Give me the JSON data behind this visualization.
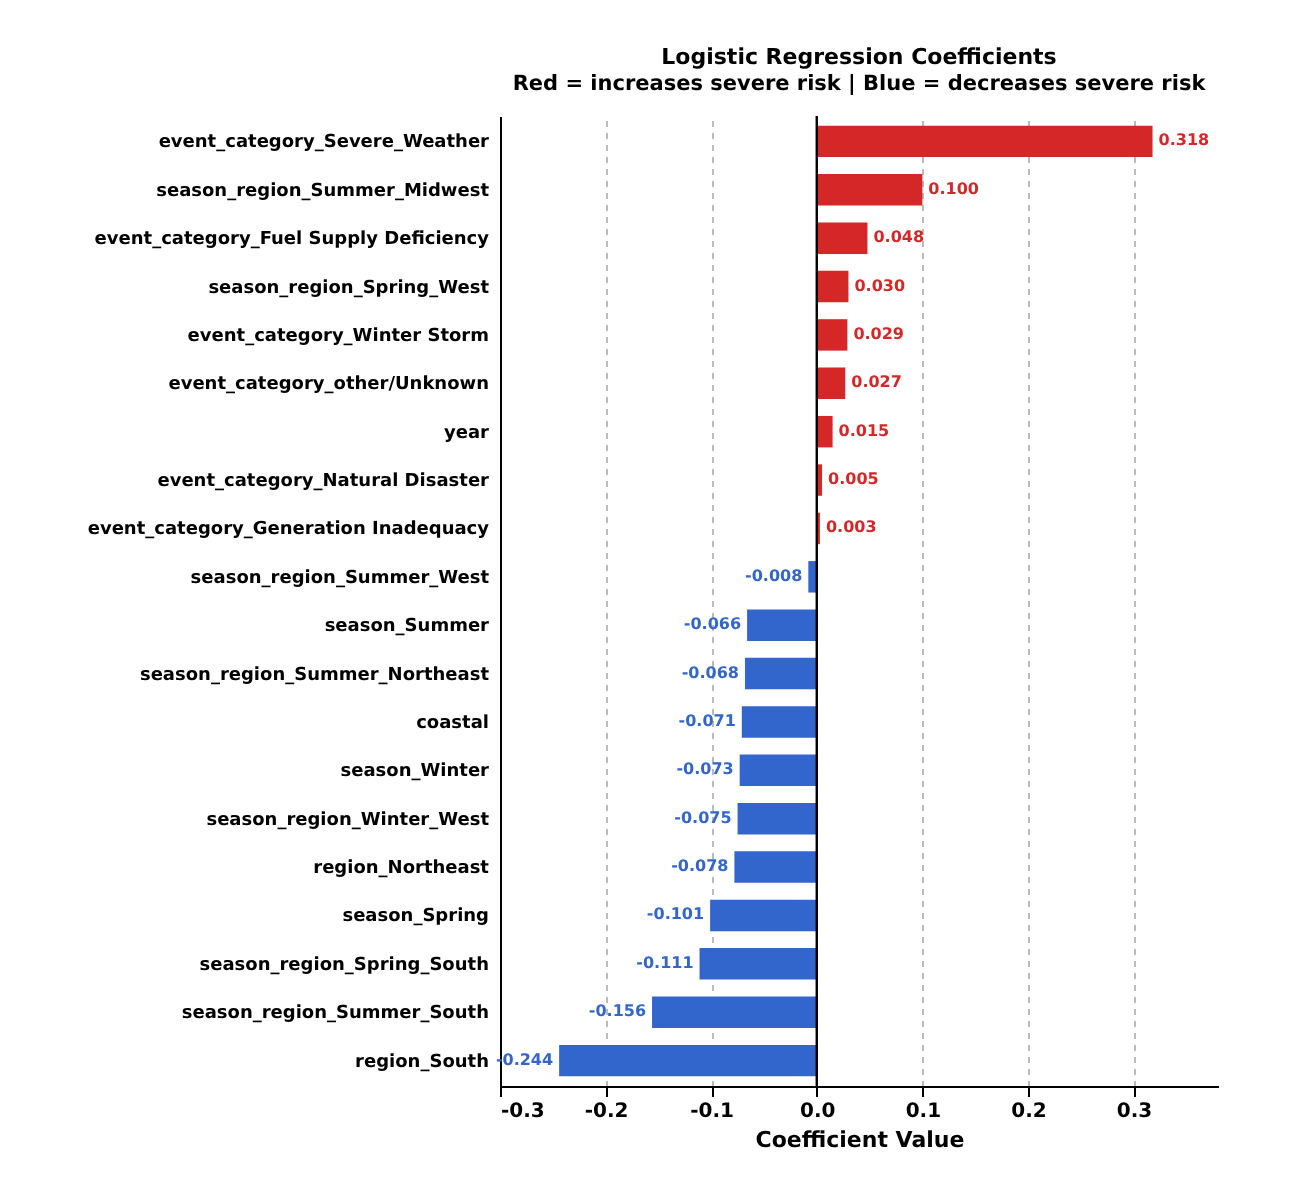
{
  "chart_data": {
    "type": "bar",
    "orientation": "horizontal",
    "title": "Logistic Regression Coefficients",
    "subtitle": "Red = increases severe risk  |  Blue = decreases severe risk",
    "xlabel": "Coefficient Value",
    "categories": [
      "event_category_Severe_Weather",
      "season_region_Summer_Midwest",
      "event_category_Fuel Supply Deficiency",
      "season_region_Spring_West",
      "event_category_Winter Storm",
      "event_category_other/Unknown",
      "year",
      "event_category_Natural Disaster",
      "event_category_Generation Inadequacy",
      "season_region_Summer_West",
      "season_Summer",
      "season_region_Summer_Northeast",
      "coastal",
      "season_Winter",
      "season_region_Winter_West",
      "region_Northeast",
      "season_Spring",
      "season_region_Spring_South",
      "season_region_Summer_South",
      "region_South"
    ],
    "values": [
      0.318,
      0.1,
      0.048,
      0.03,
      0.029,
      0.027,
      0.015,
      0.005,
      0.003,
      -0.008,
      -0.066,
      -0.068,
      -0.071,
      -0.073,
      -0.075,
      -0.078,
      -0.101,
      -0.111,
      -0.156,
      -0.244
    ],
    "value_labels": [
      "0.318",
      "0.100",
      "0.048",
      "0.030",
      "0.029",
      "0.027",
      "0.015",
      "0.005",
      "0.003",
      "-0.008",
      "-0.066",
      "-0.068",
      "-0.071",
      "-0.073",
      "-0.075",
      "-0.078",
      "-0.101",
      "-0.111",
      "-0.156",
      "-0.244"
    ],
    "colors": [
      "#d62728",
      "#d62728",
      "#d62728",
      "#d62728",
      "#d62728",
      "#d62728",
      "#d62728",
      "#d62728",
      "#d62728",
      "#3366cc",
      "#3366cc",
      "#3366cc",
      "#3366cc",
      "#3366cc",
      "#3366cc",
      "#3366cc",
      "#3366cc",
      "#3366cc",
      "#3366cc",
      "#3366cc"
    ],
    "xlim": [
      -0.3,
      0.38
    ],
    "xticks": [
      {
        "value": -0.3,
        "label": "-0.3"
      },
      {
        "value": -0.2,
        "label": "-0.2"
      },
      {
        "value": -0.1,
        "label": "-0.1"
      },
      {
        "value": 0,
        "label": "0.0"
      },
      {
        "value": 0.1,
        "label": "0.1"
      },
      {
        "value": 0.2,
        "label": "0.2"
      },
      {
        "value": 0.3,
        "label": "0.3"
      }
    ],
    "ref_lines": [
      {
        "axis": "x",
        "value": 0,
        "color": "#000000"
      }
    ],
    "grid": "x"
  }
}
